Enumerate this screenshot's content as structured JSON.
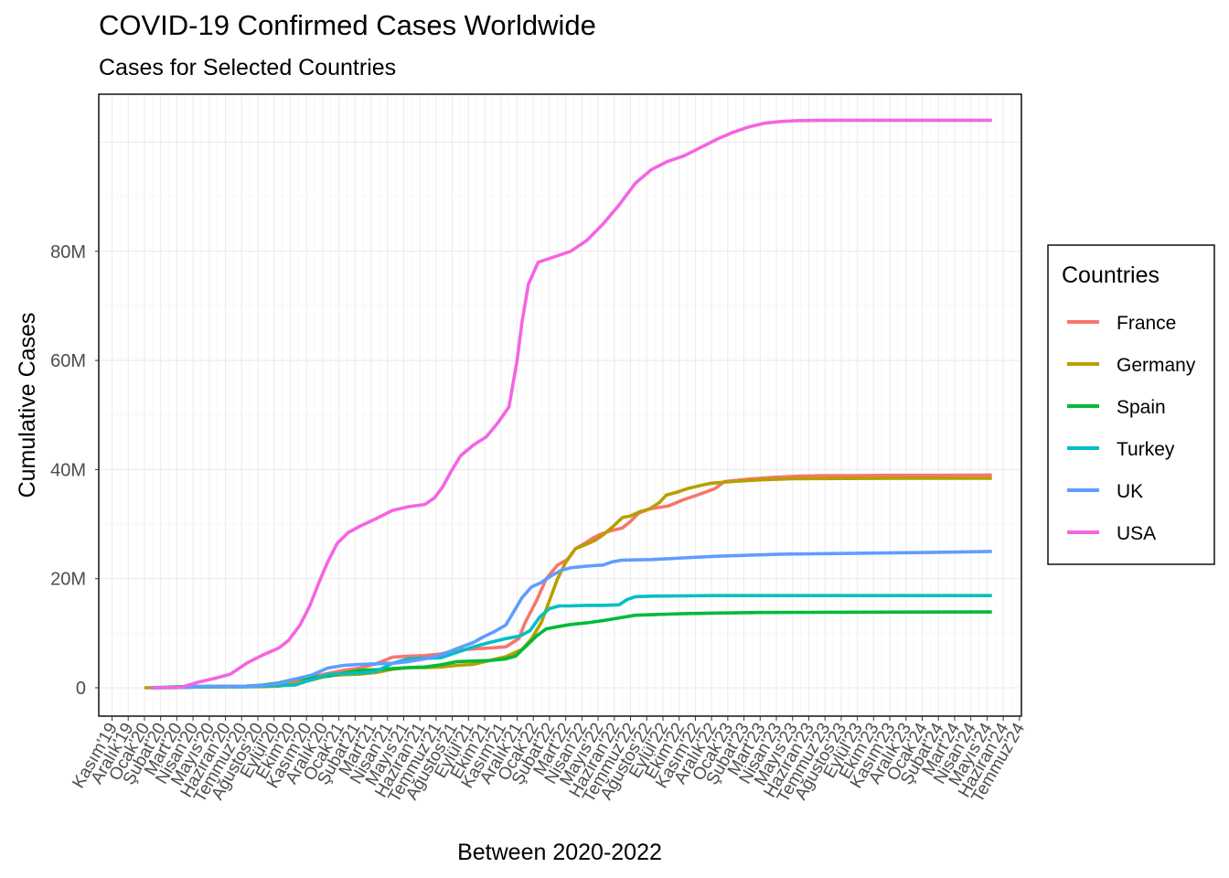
{
  "chart_data": {
    "type": "line",
    "title": "COVID-19 Confirmed Cases Worldwide",
    "subtitle": "Cases for Selected Countries",
    "xlabel": "Between 2020-2022",
    "ylabel": "Cumulative Cases",
    "x_tick_labels": [
      "Kasım'19",
      "Aralık'19",
      "Ocak'20",
      "Şubat'20",
      "Mart'20",
      "Nisan'20",
      "Mayıs'20",
      "Haziran'20",
      "Temmuz'20",
      "Ağustos'20",
      "Eylül'20",
      "Ekim'20",
      "Kasım'20",
      "Aralık'20",
      "Ocak'21",
      "Şubat'21",
      "Mart'21",
      "Nisan'21",
      "Mayıs'21",
      "Haziran'21",
      "Temmuz'21",
      "Ağustos'21",
      "Eylül'21",
      "Ekim'21",
      "Kasım'21",
      "Aralık'21",
      "Ocak'22",
      "Şubat'22",
      "Mart'22",
      "Nisan'22",
      "Mayıs'22",
      "Haziran'22",
      "Temmuz'22",
      "Ağustos'22",
      "Eylül'22",
      "Ekim'22",
      "Kasım'22",
      "Aralık'22",
      "Ocak'23",
      "Şubat'23",
      "Mart'23",
      "Nisan'23",
      "Mayıs'23",
      "Haziran'23",
      "Temmuz'23",
      "Ağustos'23",
      "Eylül'23",
      "Ekim'23",
      "Kasım'23",
      "Aralık'23",
      "Ocak'24",
      "Şubat'24",
      "Mart'24",
      "Nisan'24",
      "Mayıs'24",
      "Haziran'24",
      "Temmuz'24"
    ],
    "y_ticks": [
      0,
      20000000,
      40000000,
      60000000,
      80000000
    ],
    "y_tick_labels": [
      "0",
      "20M",
      "40M",
      "60M",
      "80M"
    ],
    "ylim": [
      -5000000,
      109000000
    ],
    "grid": true,
    "legend_title": "Countries",
    "legend_position": "right",
    "x_unit": "months since Kasım'19",
    "series": [
      {
        "name": "France",
        "color": "#F8766D",
        "points": [
          [
            2.4,
            0
          ],
          [
            4.3,
            0.05
          ],
          [
            5.3,
            0.15
          ],
          [
            8.5,
            0.2
          ],
          [
            9.5,
            0.3
          ],
          [
            10.3,
            0.6
          ],
          [
            11.3,
            1.2
          ],
          [
            12.3,
            2.0
          ],
          [
            13.3,
            2.6
          ],
          [
            14.3,
            3.2
          ],
          [
            15.3,
            3.6
          ],
          [
            16.3,
            4.4
          ],
          [
            17.3,
            5.6
          ],
          [
            18.3,
            5.8
          ],
          [
            19.3,
            5.9
          ],
          [
            20.3,
            6.2
          ],
          [
            21.3,
            6.9
          ],
          [
            22.3,
            7.1
          ],
          [
            23.3,
            7.3
          ],
          [
            24.3,
            7.5
          ],
          [
            25.1,
            9.0
          ],
          [
            25.5,
            12.0
          ],
          [
            26.2,
            16.0
          ],
          [
            26.8,
            20.0
          ],
          [
            27.5,
            22.5
          ],
          [
            28.1,
            23.5
          ],
          [
            28.6,
            25.5
          ],
          [
            29.2,
            26.5
          ],
          [
            29.7,
            27.5
          ],
          [
            30.2,
            28.2
          ],
          [
            30.8,
            28.8
          ],
          [
            31.5,
            29.3
          ],
          [
            32.0,
            30.5
          ],
          [
            32.5,
            32.0
          ],
          [
            33.2,
            32.8
          ],
          [
            34.3,
            33.3
          ],
          [
            35.3,
            34.5
          ],
          [
            36.3,
            35.5
          ],
          [
            37.2,
            36.5
          ],
          [
            37.8,
            37.8
          ],
          [
            38.5,
            38.0
          ],
          [
            39.5,
            38.3
          ],
          [
            41.0,
            38.6
          ],
          [
            42.5,
            38.8
          ],
          [
            44.0,
            38.9
          ],
          [
            46.0,
            38.9
          ],
          [
            48.0,
            38.95
          ],
          [
            51.0,
            38.95
          ],
          [
            54.3,
            39.0
          ]
        ]
      },
      {
        "name": "Germany",
        "color": "#B79F00",
        "points": [
          [
            2.0,
            0
          ],
          [
            4.3,
            0.05
          ],
          [
            5.3,
            0.15
          ],
          [
            9.3,
            0.2
          ],
          [
            10.3,
            0.3
          ],
          [
            11.3,
            0.8
          ],
          [
            12.3,
            1.4
          ],
          [
            13.3,
            2.2
          ],
          [
            14.3,
            2.4
          ],
          [
            15.3,
            2.5
          ],
          [
            16.3,
            2.8
          ],
          [
            17.3,
            3.4
          ],
          [
            18.3,
            3.7
          ],
          [
            19.3,
            3.7
          ],
          [
            20.3,
            3.8
          ],
          [
            21.3,
            4.1
          ],
          [
            22.3,
            4.3
          ],
          [
            23.3,
            5.0
          ],
          [
            24.3,
            5.7
          ],
          [
            25.3,
            7.0
          ],
          [
            25.9,
            9.0
          ],
          [
            26.5,
            12.0
          ],
          [
            27.0,
            16.0
          ],
          [
            27.5,
            20.0
          ],
          [
            28.0,
            23.0
          ],
          [
            28.6,
            25.5
          ],
          [
            29.2,
            26.2
          ],
          [
            29.8,
            27.0
          ],
          [
            30.3,
            28.0
          ],
          [
            30.9,
            29.5
          ],
          [
            31.5,
            31.2
          ],
          [
            32.0,
            31.5
          ],
          [
            32.6,
            32.3
          ],
          [
            33.2,
            32.8
          ],
          [
            33.8,
            34.0
          ],
          [
            34.2,
            35.3
          ],
          [
            34.8,
            35.8
          ],
          [
            35.5,
            36.5
          ],
          [
            36.2,
            37.0
          ],
          [
            37.0,
            37.5
          ],
          [
            38.3,
            37.8
          ],
          [
            40.0,
            38.1
          ],
          [
            42.0,
            38.3
          ],
          [
            45.0,
            38.35
          ],
          [
            49.0,
            38.4
          ],
          [
            54.3,
            38.4
          ]
        ]
      },
      {
        "name": "Spain",
        "color": "#00BA38",
        "points": [
          [
            2.4,
            0
          ],
          [
            4.3,
            0.2
          ],
          [
            5.3,
            0.25
          ],
          [
            8.3,
            0.3
          ],
          [
            9.3,
            0.5
          ],
          [
            10.3,
            0.9
          ],
          [
            11.3,
            1.6
          ],
          [
            12.3,
            1.9
          ],
          [
            13.3,
            2.1
          ],
          [
            14.3,
            2.7
          ],
          [
            15.3,
            3.2
          ],
          [
            16.3,
            3.3
          ],
          [
            17.3,
            3.5
          ],
          [
            18.3,
            3.7
          ],
          [
            19.3,
            3.8
          ],
          [
            20.3,
            4.2
          ],
          [
            21.3,
            4.8
          ],
          [
            22.3,
            4.9
          ],
          [
            23.3,
            5.0
          ],
          [
            24.3,
            5.3
          ],
          [
            24.9,
            5.8
          ],
          [
            25.5,
            7.5
          ],
          [
            26.2,
            9.5
          ],
          [
            26.8,
            10.8
          ],
          [
            27.5,
            11.2
          ],
          [
            28.3,
            11.6
          ],
          [
            29.3,
            11.9
          ],
          [
            30.3,
            12.3
          ],
          [
            31.3,
            12.8
          ],
          [
            32.3,
            13.3
          ],
          [
            33.3,
            13.4
          ],
          [
            34.3,
            13.5
          ],
          [
            35.3,
            13.6
          ],
          [
            37.3,
            13.7
          ],
          [
            40.0,
            13.8
          ],
          [
            45.0,
            13.85
          ],
          [
            54.3,
            13.9
          ]
        ]
      },
      {
        "name": "Turkey",
        "color": "#00BFC4",
        "points": [
          [
            2.4,
            0
          ],
          [
            4.3,
            0.05
          ],
          [
            5.3,
            0.15
          ],
          [
            8.3,
            0.2
          ],
          [
            9.3,
            0.3
          ],
          [
            10.3,
            0.4
          ],
          [
            11.3,
            0.5
          ],
          [
            12.3,
            1.5
          ],
          [
            13.3,
            2.4
          ],
          [
            14.3,
            2.6
          ],
          [
            15.3,
            2.7
          ],
          [
            16.3,
            3.0
          ],
          [
            17.3,
            4.5
          ],
          [
            18.3,
            5.3
          ],
          [
            19.3,
            5.4
          ],
          [
            20.3,
            5.5
          ],
          [
            21.3,
            6.5
          ],
          [
            22.3,
            7.5
          ],
          [
            23.3,
            8.3
          ],
          [
            24.3,
            9.0
          ],
          [
            25.2,
            9.5
          ],
          [
            25.8,
            10.5
          ],
          [
            26.4,
            13.0
          ],
          [
            27.0,
            14.5
          ],
          [
            27.6,
            15.0
          ],
          [
            28.3,
            15.0
          ],
          [
            29.3,
            15.1
          ],
          [
            30.3,
            15.1
          ],
          [
            31.3,
            15.2
          ],
          [
            31.8,
            16.2
          ],
          [
            32.3,
            16.7
          ],
          [
            33.3,
            16.8
          ],
          [
            37.3,
            16.9
          ],
          [
            54.3,
            16.9
          ]
        ]
      },
      {
        "name": "UK",
        "color": "#619CFF",
        "points": [
          [
            2.4,
            0
          ],
          [
            4.3,
            0.05
          ],
          [
            5.3,
            0.2
          ],
          [
            8.3,
            0.3
          ],
          [
            9.3,
            0.4
          ],
          [
            10.3,
            0.8
          ],
          [
            11.3,
            1.6
          ],
          [
            12.3,
            2.3
          ],
          [
            13.3,
            3.6
          ],
          [
            14.3,
            4.1
          ],
          [
            15.3,
            4.3
          ],
          [
            16.3,
            4.4
          ],
          [
            17.3,
            4.5
          ],
          [
            18.3,
            4.8
          ],
          [
            19.3,
            5.3
          ],
          [
            20.3,
            6.0
          ],
          [
            21.3,
            7.2
          ],
          [
            22.3,
            8.3
          ],
          [
            22.9,
            9.3
          ],
          [
            23.6,
            10.3
          ],
          [
            24.3,
            11.5
          ],
          [
            24.8,
            14.0
          ],
          [
            25.3,
            16.5
          ],
          [
            25.9,
            18.5
          ],
          [
            26.5,
            19.3
          ],
          [
            27.1,
            20.5
          ],
          [
            27.7,
            21.5
          ],
          [
            28.3,
            22.0
          ],
          [
            29.3,
            22.3
          ],
          [
            30.3,
            22.5
          ],
          [
            30.9,
            23.1
          ],
          [
            31.5,
            23.4
          ],
          [
            33.3,
            23.5
          ],
          [
            35.3,
            23.8
          ],
          [
            37.3,
            24.1
          ],
          [
            39.3,
            24.3
          ],
          [
            41.3,
            24.5
          ],
          [
            44.3,
            24.6
          ],
          [
            47.3,
            24.7
          ],
          [
            50.3,
            24.8
          ],
          [
            54.3,
            25.0
          ]
        ]
      },
      {
        "name": "USA",
        "color": "#F564E3",
        "points": [
          [
            2.4,
            0
          ],
          [
            4.3,
            0.1
          ],
          [
            5.3,
            1.0
          ],
          [
            6.3,
            1.7
          ],
          [
            7.3,
            2.5
          ],
          [
            8.3,
            4.5
          ],
          [
            9.3,
            6.0
          ],
          [
            10.3,
            7.3
          ],
          [
            10.9,
            8.7
          ],
          [
            11.6,
            11.5
          ],
          [
            12.2,
            15.0
          ],
          [
            12.8,
            19.5
          ],
          [
            13.3,
            23.0
          ],
          [
            13.9,
            26.5
          ],
          [
            14.6,
            28.5
          ],
          [
            15.3,
            29.6
          ],
          [
            16.3,
            31.0
          ],
          [
            17.3,
            32.5
          ],
          [
            18.3,
            33.2
          ],
          [
            19.3,
            33.6
          ],
          [
            19.9,
            34.8
          ],
          [
            20.4,
            36.8
          ],
          [
            20.9,
            39.5
          ],
          [
            21.5,
            42.5
          ],
          [
            22.3,
            44.5
          ],
          [
            23.1,
            46.0
          ],
          [
            23.8,
            48.5
          ],
          [
            24.5,
            51.5
          ],
          [
            25.0,
            60.0
          ],
          [
            25.3,
            67.0
          ],
          [
            25.7,
            74.0
          ],
          [
            26.3,
            78.0
          ],
          [
            27.3,
            79.0
          ],
          [
            28.3,
            80.0
          ],
          [
            29.3,
            82.0
          ],
          [
            30.3,
            85.0
          ],
          [
            31.3,
            88.5
          ],
          [
            32.3,
            92.5
          ],
          [
            33.3,
            95.0
          ],
          [
            34.3,
            96.5
          ],
          [
            35.3,
            97.5
          ],
          [
            36.3,
            99.0
          ],
          [
            37.3,
            100.5
          ],
          [
            38.3,
            101.8
          ],
          [
            39.3,
            102.8
          ],
          [
            40.3,
            103.5
          ],
          [
            41.3,
            103.8
          ],
          [
            42.3,
            103.95
          ],
          [
            44.0,
            104.0
          ],
          [
            54.3,
            104.0
          ]
        ]
      }
    ]
  }
}
